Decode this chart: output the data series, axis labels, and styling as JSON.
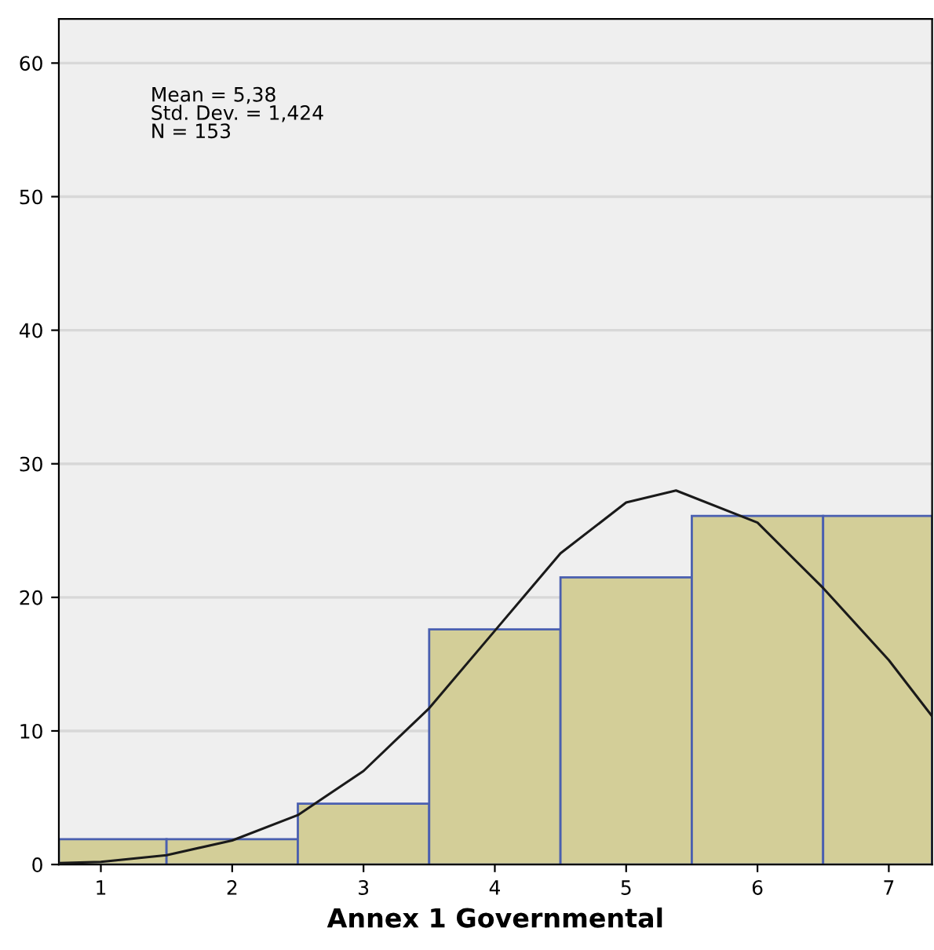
{
  "chart_data": {
    "type": "histogram",
    "xlabel": "Annex 1 Governmental",
    "bins": [
      0.68,
      1.5,
      2.5,
      3.5,
      4.5,
      5.5,
      6.5,
      7.33
    ],
    "values": [
      1.9,
      1.9,
      4.55,
      17.6,
      21.5,
      26.1,
      26.1
    ],
    "color": "#d3ce98",
    "series": [
      {
        "type": "line",
        "color": "#1a1a1a",
        "x": [
          0.68,
          1,
          1.5,
          2,
          2.5,
          3,
          3.5,
          4,
          4.5,
          5,
          5.38,
          6,
          6.5,
          7,
          7.33
        ],
        "values": [
          0.1,
          0.2,
          0.7,
          1.8,
          3.7,
          7.0,
          11.7,
          17.5,
          23.3,
          27.1,
          28.0,
          25.6,
          20.7,
          15.3,
          11.1
        ]
      }
    ],
    "annotations": [
      "Mean = 5,38\nStd. Dev. = 1,424\nN = 153"
    ],
    "xlim": [
      0.68,
      7.33
    ],
    "ylim": [
      0,
      63.3
    ],
    "xticks": [
      1,
      2,
      3,
      4,
      5,
      6,
      7
    ],
    "yticks": [
      0,
      10,
      20,
      30,
      40,
      50,
      60
    ],
    "grid": "y",
    "legend": false
  }
}
